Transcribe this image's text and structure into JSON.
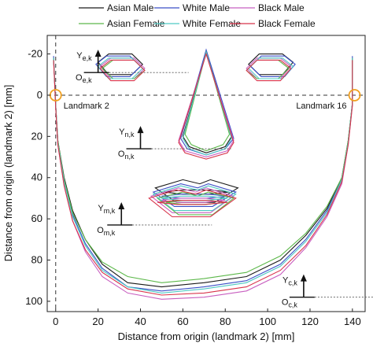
{
  "chart_data": {
    "type": "line",
    "title": "",
    "xlabel": "Distance from origin (landmark 2) [mm]",
    "ylabel": "Distance from origin (landmark 2) [mm]",
    "xlim": [
      -4,
      146
    ],
    "ylim": [
      105,
      -29
    ],
    "y_axis_inverted": true,
    "xticks": [
      0,
      20,
      40,
      60,
      80,
      100,
      120,
      140
    ],
    "yticks": [
      -20,
      0,
      20,
      40,
      60,
      80,
      100
    ],
    "grid": false,
    "legend_position": "top",
    "reference_lines": {
      "horizontal_y": 0,
      "vertical_x": 0,
      "style": "dashed"
    },
    "landmarks": [
      {
        "label": "Landmark 2",
        "x": 0,
        "y": 0
      },
      {
        "label": "Landmark 16",
        "x": 141,
        "y": 0
      }
    ],
    "frame_labels": [
      {
        "y_label": "Y",
        "y_sub": "e,k",
        "o_label": "O",
        "o_sub": "e,k",
        "origin": [
          20,
          -11
        ]
      },
      {
        "y_label": "Y",
        "y_sub": "n,k",
        "o_label": "O",
        "o_sub": "n,k",
        "origin": [
          40,
          26
        ]
      },
      {
        "y_label": "Y",
        "y_sub": "m,k",
        "o_label": "O",
        "o_sub": "m,k",
        "origin": [
          31,
          63
        ]
      },
      {
        "y_label": "Y",
        "y_sub": "c,k",
        "o_label": "O",
        "o_sub": "c,k",
        "origin": [
          117,
          98
        ]
      }
    ],
    "series": [
      {
        "name": "Asian Male",
        "color": "#1a1a1a",
        "jaw": [
          [
            -1,
            -18
          ],
          [
            0,
            5
          ],
          [
            1,
            22
          ],
          [
            4,
            40
          ],
          [
            8,
            56
          ],
          [
            14,
            70
          ],
          [
            22,
            82
          ],
          [
            34,
            91
          ],
          [
            50,
            93
          ],
          [
            70,
            91
          ],
          [
            90,
            88
          ],
          [
            106,
            80
          ],
          [
            118,
            68
          ],
          [
            128,
            55
          ],
          [
            135,
            40
          ],
          [
            138,
            22
          ],
          [
            140,
            4
          ],
          [
            140,
            -18
          ]
        ],
        "eye_left": [
          [
            20,
            -16
          ],
          [
            25,
            -20
          ],
          [
            36,
            -20
          ],
          [
            41,
            -15
          ],
          [
            36,
            -10
          ],
          [
            25,
            -10
          ]
        ],
        "eye_right": [
          [
            91,
            -15
          ],
          [
            96,
            -20
          ],
          [
            107,
            -20
          ],
          [
            112,
            -16
          ],
          [
            107,
            -10
          ],
          [
            96,
            -10
          ]
        ],
        "nose": [
          [
            71,
            -21
          ],
          [
            60,
            20
          ],
          [
            63,
            25
          ],
          [
            71,
            28
          ],
          [
            80,
            25
          ],
          [
            83,
            20
          ]
        ],
        "mouth_outer": [
          [
            47,
            45
          ],
          [
            60,
            41
          ],
          [
            68,
            43
          ],
          [
            73,
            41
          ],
          [
            86,
            45
          ],
          [
            75,
            52
          ],
          [
            57,
            52
          ]
        ],
        "mouth_inner": [
          [
            51,
            47
          ],
          [
            60,
            46
          ],
          [
            73,
            46
          ],
          [
            82,
            47
          ],
          [
            72,
            48
          ],
          [
            60,
            48
          ]
        ]
      },
      {
        "name": "White Male",
        "color": "#3a4fc7",
        "jaw": [
          [
            -1,
            -19
          ],
          [
            0,
            5
          ],
          [
            1,
            23
          ],
          [
            4,
            42
          ],
          [
            8,
            58
          ],
          [
            14,
            72
          ],
          [
            22,
            84
          ],
          [
            34,
            93
          ],
          [
            50,
            95
          ],
          [
            70,
            93
          ],
          [
            90,
            90
          ],
          [
            106,
            82
          ],
          [
            118,
            70
          ],
          [
            128,
            56
          ],
          [
            135,
            41
          ],
          [
            138,
            23
          ],
          [
            140,
            4
          ],
          [
            140,
            -19
          ]
        ],
        "eye_left": [
          [
            19,
            -15
          ],
          [
            24,
            -19
          ],
          [
            35,
            -19
          ],
          [
            40,
            -14
          ],
          [
            35,
            -9
          ],
          [
            24,
            -9
          ]
        ],
        "eye_right": [
          [
            92,
            -14
          ],
          [
            97,
            -19
          ],
          [
            108,
            -19
          ],
          [
            113,
            -15
          ],
          [
            108,
            -9
          ],
          [
            97,
            -9
          ]
        ],
        "nose": [
          [
            71,
            -22
          ],
          [
            59,
            21
          ],
          [
            62,
            26
          ],
          [
            71,
            29
          ],
          [
            80,
            26
          ],
          [
            84,
            21
          ]
        ],
        "mouth_outer": [
          [
            46,
            47
          ],
          [
            59,
            43
          ],
          [
            67,
            45
          ],
          [
            72,
            43
          ],
          [
            85,
            47
          ],
          [
            74,
            54
          ],
          [
            56,
            54
          ]
        ],
        "mouth_inner": [
          [
            50,
            49
          ],
          [
            59,
            48
          ],
          [
            72,
            48
          ],
          [
            81,
            49
          ],
          [
            71,
            50
          ],
          [
            59,
            50
          ]
        ]
      },
      {
        "name": "Black Male",
        "color": "#c85fc0",
        "jaw": [
          [
            -1,
            -17
          ],
          [
            0,
            6
          ],
          [
            1,
            24
          ],
          [
            4,
            44
          ],
          [
            8,
            61
          ],
          [
            14,
            76
          ],
          [
            22,
            88
          ],
          [
            34,
            96
          ],
          [
            50,
            99
          ],
          [
            70,
            98
          ],
          [
            90,
            95
          ],
          [
            106,
            87
          ],
          [
            118,
            74
          ],
          [
            128,
            59
          ],
          [
            135,
            43
          ],
          [
            138,
            24
          ],
          [
            140,
            5
          ],
          [
            140,
            -17
          ]
        ],
        "eye_left": [
          [
            21,
            -14
          ],
          [
            26,
            -18
          ],
          [
            37,
            -18
          ],
          [
            42,
            -13
          ],
          [
            37,
            -8
          ],
          [
            26,
            -8
          ]
        ],
        "eye_right": [
          [
            90,
            -13
          ],
          [
            95,
            -18
          ],
          [
            106,
            -18
          ],
          [
            111,
            -14
          ],
          [
            106,
            -8
          ],
          [
            95,
            -8
          ]
        ],
        "nose": [
          [
            71,
            -20
          ],
          [
            58,
            22
          ],
          [
            61,
            27
          ],
          [
            71,
            30
          ],
          [
            81,
            27
          ],
          [
            84,
            22
          ]
        ],
        "mouth_outer": [
          [
            45,
            49
          ],
          [
            58,
            45
          ],
          [
            66,
            47
          ],
          [
            71,
            45
          ],
          [
            84,
            49
          ],
          [
            73,
            57
          ],
          [
            55,
            57
          ]
        ],
        "mouth_inner": [
          [
            49,
            51
          ],
          [
            58,
            50
          ],
          [
            71,
            50
          ],
          [
            80,
            51
          ],
          [
            70,
            52
          ],
          [
            58,
            52
          ]
        ]
      },
      {
        "name": "Asian Female",
        "color": "#5cb84a",
        "jaw": [
          [
            -1,
            -18
          ],
          [
            0,
            5
          ],
          [
            1,
            22
          ],
          [
            4,
            41
          ],
          [
            8,
            57
          ],
          [
            14,
            70
          ],
          [
            22,
            81
          ],
          [
            34,
            88
          ],
          [
            50,
            91
          ],
          [
            70,
            89
          ],
          [
            90,
            86
          ],
          [
            106,
            78
          ],
          [
            118,
            67
          ],
          [
            128,
            54
          ],
          [
            135,
            40
          ],
          [
            138,
            22
          ],
          [
            140,
            4
          ],
          [
            140,
            -18
          ]
        ],
        "eye_left": [
          [
            22,
            -13
          ],
          [
            27,
            -17
          ],
          [
            37,
            -17
          ],
          [
            42,
            -12
          ],
          [
            37,
            -8
          ],
          [
            27,
            -8
          ]
        ],
        "eye_right": [
          [
            90,
            -12
          ],
          [
            95,
            -17
          ],
          [
            105,
            -17
          ],
          [
            110,
            -13
          ],
          [
            105,
            -8
          ],
          [
            95,
            -8
          ]
        ],
        "nose": [
          [
            71,
            -21
          ],
          [
            61,
            19
          ],
          [
            64,
            24
          ],
          [
            71,
            27
          ],
          [
            79,
            24
          ],
          [
            82,
            19
          ]
        ],
        "mouth_outer": [
          [
            48,
            50
          ],
          [
            60,
            47
          ],
          [
            67,
            49
          ],
          [
            72,
            47
          ],
          [
            84,
            50
          ],
          [
            74,
            58
          ],
          [
            58,
            58
          ]
        ],
        "mouth_inner": [
          [
            52,
            52
          ],
          [
            60,
            51
          ],
          [
            72,
            51
          ],
          [
            80,
            52
          ],
          [
            71,
            53
          ],
          [
            60,
            53
          ]
        ]
      },
      {
        "name": "White Female",
        "color": "#4fc9c3",
        "jaw": [
          [
            -1,
            -18
          ],
          [
            0,
            5
          ],
          [
            1,
            23
          ],
          [
            4,
            42
          ],
          [
            8,
            59
          ],
          [
            14,
            73
          ],
          [
            22,
            85
          ],
          [
            34,
            93
          ],
          [
            50,
            96
          ],
          [
            70,
            94
          ],
          [
            90,
            91
          ],
          [
            106,
            83
          ],
          [
            118,
            71
          ],
          [
            128,
            57
          ],
          [
            135,
            41
          ],
          [
            138,
            23
          ],
          [
            140,
            4
          ],
          [
            140,
            -18
          ]
        ],
        "eye_left": [
          [
            20,
            -14
          ],
          [
            25,
            -18
          ],
          [
            36,
            -18
          ],
          [
            41,
            -13
          ],
          [
            36,
            -8
          ],
          [
            25,
            -8
          ]
        ],
        "eye_right": [
          [
            91,
            -13
          ],
          [
            96,
            -18
          ],
          [
            107,
            -18
          ],
          [
            112,
            -14
          ],
          [
            107,
            -8
          ],
          [
            96,
            -8
          ]
        ],
        "nose": [
          [
            71,
            -21
          ],
          [
            60,
            21
          ],
          [
            63,
            26
          ],
          [
            71,
            29
          ],
          [
            80,
            26
          ],
          [
            83,
            21
          ]
        ],
        "mouth_outer": [
          [
            46,
            48
          ],
          [
            59,
            44
          ],
          [
            67,
            46
          ],
          [
            72,
            44
          ],
          [
            85,
            48
          ],
          [
            74,
            56
          ],
          [
            56,
            56
          ]
        ],
        "mouth_inner": [
          [
            50,
            50
          ],
          [
            59,
            49
          ],
          [
            72,
            49
          ],
          [
            81,
            50
          ],
          [
            71,
            51
          ],
          [
            59,
            51
          ]
        ]
      },
      {
        "name": "Black Female",
        "color": "#d8334a",
        "jaw": [
          [
            -1,
            -17
          ],
          [
            0,
            6
          ],
          [
            1,
            24
          ],
          [
            4,
            44
          ],
          [
            8,
            61
          ],
          [
            14,
            75
          ],
          [
            22,
            86
          ],
          [
            34,
            94
          ],
          [
            50,
            97
          ],
          [
            70,
            96
          ],
          [
            90,
            93
          ],
          [
            106,
            85
          ],
          [
            118,
            73
          ],
          [
            128,
            58
          ],
          [
            135,
            42
          ],
          [
            138,
            24
          ],
          [
            140,
            5
          ],
          [
            140,
            -17
          ]
        ],
        "eye_left": [
          [
            21,
            -13
          ],
          [
            26,
            -17
          ],
          [
            37,
            -17
          ],
          [
            42,
            -12
          ],
          [
            37,
            -7
          ],
          [
            26,
            -7
          ]
        ],
        "eye_right": [
          [
            90,
            -12
          ],
          [
            95,
            -17
          ],
          [
            106,
            -17
          ],
          [
            111,
            -13
          ],
          [
            106,
            -7
          ],
          [
            95,
            -7
          ]
        ],
        "nose": [
          [
            71,
            -20
          ],
          [
            58,
            23
          ],
          [
            61,
            28
          ],
          [
            71,
            31
          ],
          [
            81,
            28
          ],
          [
            84,
            23
          ]
        ],
        "mouth_outer": [
          [
            44,
            50
          ],
          [
            57,
            46
          ],
          [
            66,
            48
          ],
          [
            71,
            46
          ],
          [
            85,
            50
          ],
          [
            73,
            59
          ],
          [
            55,
            59
          ]
        ],
        "mouth_inner": [
          [
            48,
            52
          ],
          [
            57,
            51
          ],
          [
            71,
            51
          ],
          [
            81,
            52
          ],
          [
            70,
            53
          ],
          [
            57,
            53
          ]
        ]
      }
    ]
  }
}
